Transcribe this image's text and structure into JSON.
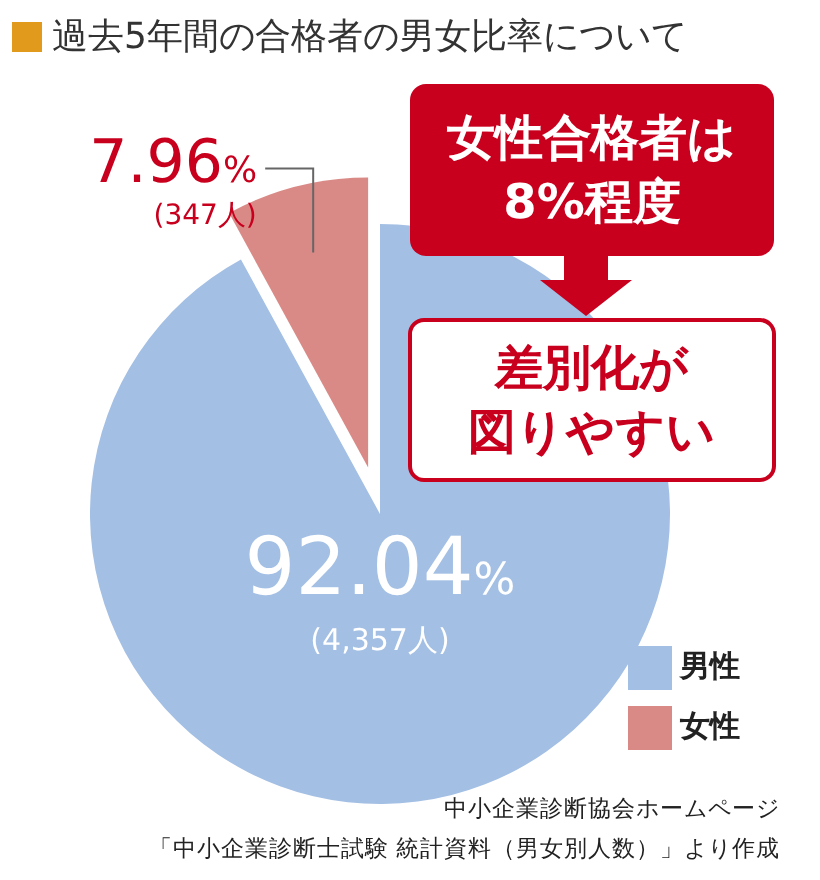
{
  "chart_data": {
    "type": "pie",
    "title": "過去5年間の合格者の男女比率について",
    "categories": [
      "男性",
      "女性"
    ],
    "values": [
      92.04,
      7.96
    ],
    "colors": [
      "#a3bfe4",
      "#d98a86"
    ],
    "value_labels": [
      "92.04%\n(4,357人)",
      "7.96%\n(347人)"
    ],
    "legend": "bottom right",
    "annotations": [
      "女性合格者は",
      "8%程度",
      "差別化が",
      "図りやすい",
      "中小企業診断協会ホームページ",
      "「中小企業診断士試験 統計資料（男女別人数）」より作成"
    ]
  }
}
